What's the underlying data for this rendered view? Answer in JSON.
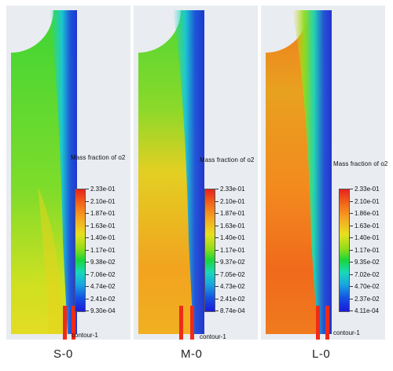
{
  "panels": [
    {
      "case_label": "S-0",
      "legend_title": "Mass fraction of o2",
      "ticks": [
        "2.33e-01",
        "2.10e-01",
        "1.87e-01",
        "1.63e-01",
        "1.40e-01",
        "1.17e-01",
        "9.38e-02",
        "7.06e-02",
        "4.74e-02",
        "2.41e-02",
        "9.30e-04"
      ],
      "contour_label": "contour-1",
      "colors": {
        "bulk": "#3ed536",
        "mid": "#c6df23",
        "low": "#e6d31e",
        "jet": "#1a3fe0",
        "hot": "#ef2b17"
      }
    },
    {
      "case_label": "M-0",
      "legend_title": "Mass fraction of o2",
      "ticks": [
        "2.33e-01",
        "2.10e-01",
        "1.87e-01",
        "1.63e-01",
        "1.40e-01",
        "1.17e-01",
        "9.37e-02",
        "7.05e-02",
        "4.73e-02",
        "2.41e-02",
        "8.74e-04"
      ],
      "contour_label": "contour-1",
      "colors": {
        "bulk": "#8ad92a",
        "mid": "#e3cf22",
        "low": "#f2a31f",
        "jet": "#1a3fe0",
        "hot": "#ef2b17"
      }
    },
    {
      "case_label": "L-0",
      "legend_title": "Mass fraction of o2",
      "ticks": [
        "2.33e-01",
        "2.10e-01",
        "1.86e-01",
        "1.63e-01",
        "1.40e-01",
        "1.17e-01",
        "9.35e-02",
        "7.02e-02",
        "4.70e-02",
        "2.37e-02",
        "4.11e-04"
      ],
      "contour_label": "contour-1",
      "colors": {
        "bulk": "#d9d620",
        "mid": "#f28a1e",
        "low": "#f06a1c",
        "jet": "#1a3fe0",
        "hot": "#ef2b17"
      }
    }
  ]
}
